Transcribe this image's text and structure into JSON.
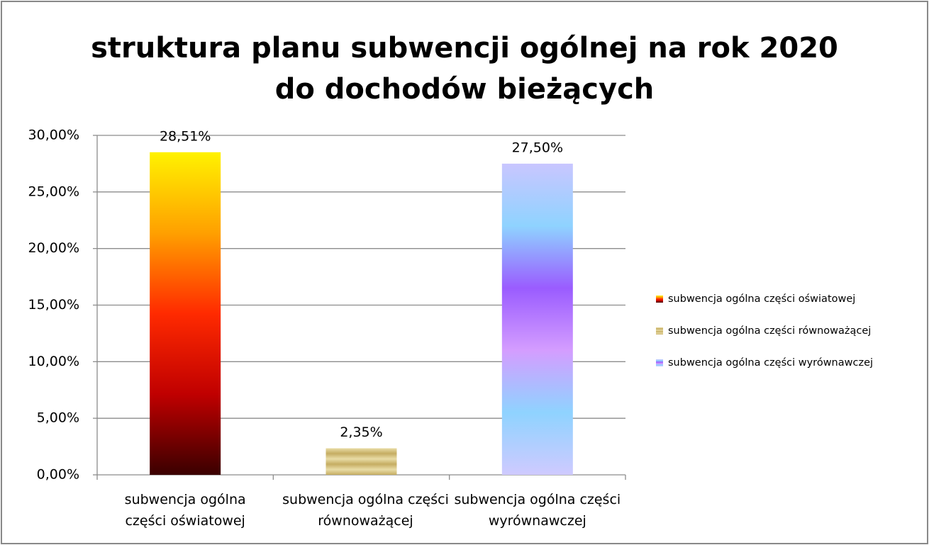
{
  "chart_data": {
    "type": "bar",
    "title": "struktura planu subwencji ogólnej na rok 2020",
    "subtitle": "do dochodów bieżących",
    "categories": [
      "subwencja ogólna części oświatowej",
      "subwencja ogólna części równoważącej",
      "subwencja ogólna części wyrównawczej"
    ],
    "values": [
      28.51,
      2.35,
      27.5
    ],
    "value_labels": [
      "28,51%",
      "2,35%",
      "27,50%"
    ],
    "colors": [
      [
        "#fff200",
        "#ffa000",
        "#ff2a00",
        "#c00000",
        "#3a0000"
      ],
      [
        "#e9dca6",
        "#c5ad62",
        "#e9dca6",
        "#c5ad62",
        "#e9dca6",
        "#c5ad62"
      ],
      [
        "#c9c6ff",
        "#8fd3ff",
        "#9a5cff",
        "#d49dff",
        "#8fd3ff",
        "#cfcaff"
      ]
    ],
    "ylim": [
      0,
      30
    ],
    "yticks": [
      {
        "value": 0,
        "label": "0,00%"
      },
      {
        "value": 5,
        "label": "5,00%"
      },
      {
        "value": 10,
        "label": "10,00%"
      },
      {
        "value": 15,
        "label": "15,00%"
      },
      {
        "value": 20,
        "label": "20,00%"
      },
      {
        "value": 25,
        "label": "25,00%"
      },
      {
        "value": 30,
        "label": "30,00%"
      }
    ],
    "grid": true,
    "legend": "right"
  }
}
